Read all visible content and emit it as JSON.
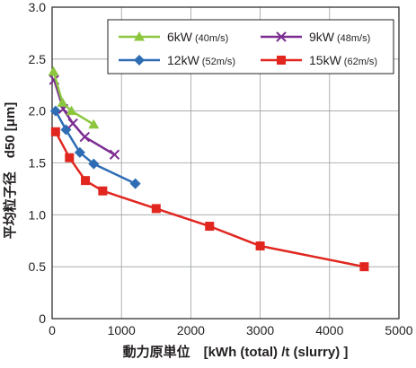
{
  "chart_data": {
    "type": "line",
    "xlabel": "動力原単位　[kWh (total) /t (slurry) ]",
    "ylabel": "平均粒子径　d50 [μm]",
    "xlim": [
      0,
      5000
    ],
    "ylim": [
      0,
      3.0
    ],
    "xticks": [
      0,
      1000,
      2000,
      3000,
      4000,
      5000
    ],
    "yticks": [
      0,
      0.5,
      1.0,
      1.5,
      2.0,
      2.5,
      3.0
    ],
    "xtick_labels": [
      "0",
      "1000",
      "2000",
      "3000",
      "4000",
      "5000"
    ],
    "ytick_labels": [
      "0",
      "0.5",
      "1.0",
      "1.5",
      "2.0",
      "2.5",
      "3.0"
    ],
    "grid": "vertical and horizontal major gridlines",
    "legend_position": "top-right",
    "series": [
      {
        "name": "6kW",
        "note": "(40m/s)",
        "color": "#8cc63f",
        "marker": "triangle",
        "x": [
          20,
          150,
          280,
          600
        ],
        "y": [
          2.38,
          2.08,
          2.0,
          1.87
        ]
      },
      {
        "name": "9kW",
        "note": "(48m/s)",
        "color": "#7b2c91",
        "marker": "cross",
        "x": [
          30,
          160,
          300,
          470,
          900
        ],
        "y": [
          2.3,
          2.02,
          1.88,
          1.75,
          1.58
        ]
      },
      {
        "name": "12kW",
        "note": "(52m/s)",
        "color": "#2e6db4",
        "marker": "diamond",
        "x": [
          50,
          200,
          400,
          600,
          1200
        ],
        "y": [
          2.0,
          1.82,
          1.6,
          1.49,
          1.3
        ]
      },
      {
        "name": "15kW",
        "note": "(62m/s)",
        "color": "#e0261f",
        "marker": "square",
        "x": [
          50,
          250,
          480,
          730,
          1500,
          2270,
          3000,
          4500
        ],
        "y": [
          1.8,
          1.55,
          1.33,
          1.23,
          1.06,
          0.89,
          0.7,
          0.5
        ]
      }
    ]
  }
}
